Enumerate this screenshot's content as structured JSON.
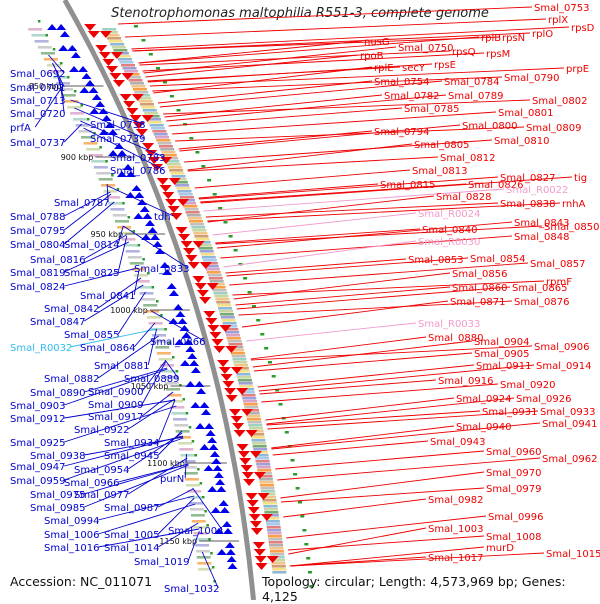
{
  "title": "Stenotrophomonas maltophilia R551-3, complete genome",
  "accession_label": "Accession: NC_011071",
  "summary_label": "Topology: circular; Length: 4,573,969 bp; Genes: 4,125",
  "colors": {
    "forward_label": "#0000cc",
    "reverse_label": "#ee0000",
    "rna_forward_label": "#33bbee",
    "rna_reverse_label": "#f29acb",
    "forward_gene": "#0000ee",
    "reverse_gene": "#ee0000",
    "backbone": "#909090",
    "tick_dot": "#2a9a2a"
  },
  "scale_ticks": [
    "850 kbp",
    "900 kbp",
    "950 kbp",
    "1000 kbp",
    "1050 kbp",
    "1100 kbp",
    "1150 kbp"
  ],
  "forward_labels": [
    "Smal_0692",
    "Smal_0701",
    "Smal_0713",
    "Smal_0720",
    "prfA",
    "Smal_0737",
    "Smal_0738",
    "Smal_0739",
    "Smal_0783",
    "Smal_0786",
    "Smal_0787",
    "Smal_0788",
    "tdh",
    "Smal_0795",
    "Smal_0804",
    "Smal_0814",
    "Smal_0816",
    "Smal_0819",
    "Smal_0825",
    "Smal_0833",
    "Smal_0824",
    "Smal_0841",
    "Smal_0842",
    "Smal_0847",
    "Smal_0855",
    "Smal_R0032",
    "Smal_0864",
    "Smal_0866",
    "Smal_0881",
    "Smal_0882",
    "Smal_0889",
    "Smal_0890",
    "Smal_0900",
    "Smal_0903",
    "Smal_0909",
    "Smal_0912",
    "Smal_0917",
    "Smal_0922",
    "Smal_0925",
    "Smal_0934",
    "Smal_0938",
    "Smal_0945",
    "Smal_0947",
    "Smal_0954",
    "Smal_0959",
    "Smal_0966",
    "purN",
    "Smal_0975",
    "Smal_0977",
    "Smal_0985",
    "Smal_0987",
    "Smal_0994",
    "Smal_1006",
    "Smal_1005",
    "Smal_1004",
    "Smal_1016",
    "Smal_1014",
    "Smal_1019",
    "Smal_1032"
  ],
  "reverse_labels": [
    "Smal_0753",
    "rplX",
    "rpsD",
    "rplB",
    "rpsN",
    "rplO",
    "nusG",
    "Smal_0750",
    "rpsQ",
    "rpsM",
    "rpoB",
    "rplE",
    "secY",
    "rpsE",
    "Smal_0754",
    "Smal_0784",
    "Smal_0790",
    "prpE",
    "Smal_0782",
    "Smal_0789",
    "Smal_0802",
    "Smal_0785",
    "Smal_0801",
    "Smal_0800",
    "Smal_0809",
    "Smal_0794",
    "Smal_0810",
    "Smal_0805",
    "Smal_0812",
    "Smal_0813",
    "Smal_0827",
    "tig",
    "Smal_0815",
    "Smal_0826",
    "Smal_R0022",
    "Smal_0828",
    "Smal_0838",
    "rnhA",
    "Smal_R0024",
    "Smal_0843",
    "Smal_0840",
    "Smal_0850",
    "Smal_0848",
    "Smal_R0030",
    "Smal_0853",
    "Smal_0854",
    "Smal_0857",
    "Smal_0856",
    "rpmF",
    "Smal_0860",
    "Smal_0865",
    "Smal_0871",
    "Smal_0876",
    "Smal_R0033",
    "Smal_0880",
    "Smal_0904",
    "Smal_0906",
    "Smal_0905",
    "Smal_0911",
    "Smal_0914",
    "Smal_0916",
    "Smal_0920",
    "Smal_0924",
    "Smal_0926",
    "Smal_0931",
    "Smal_0933",
    "Smal_0940",
    "Smal_0941",
    "Smal_0943",
    "Smal_0960",
    "Smal_0962",
    "Smal_0970",
    "Smal_0979",
    "Smal_0982",
    "Smal_0996",
    "Smal_1003",
    "Smal_1008",
    "Smal_1015",
    "murD",
    "Smal_1017"
  ]
}
